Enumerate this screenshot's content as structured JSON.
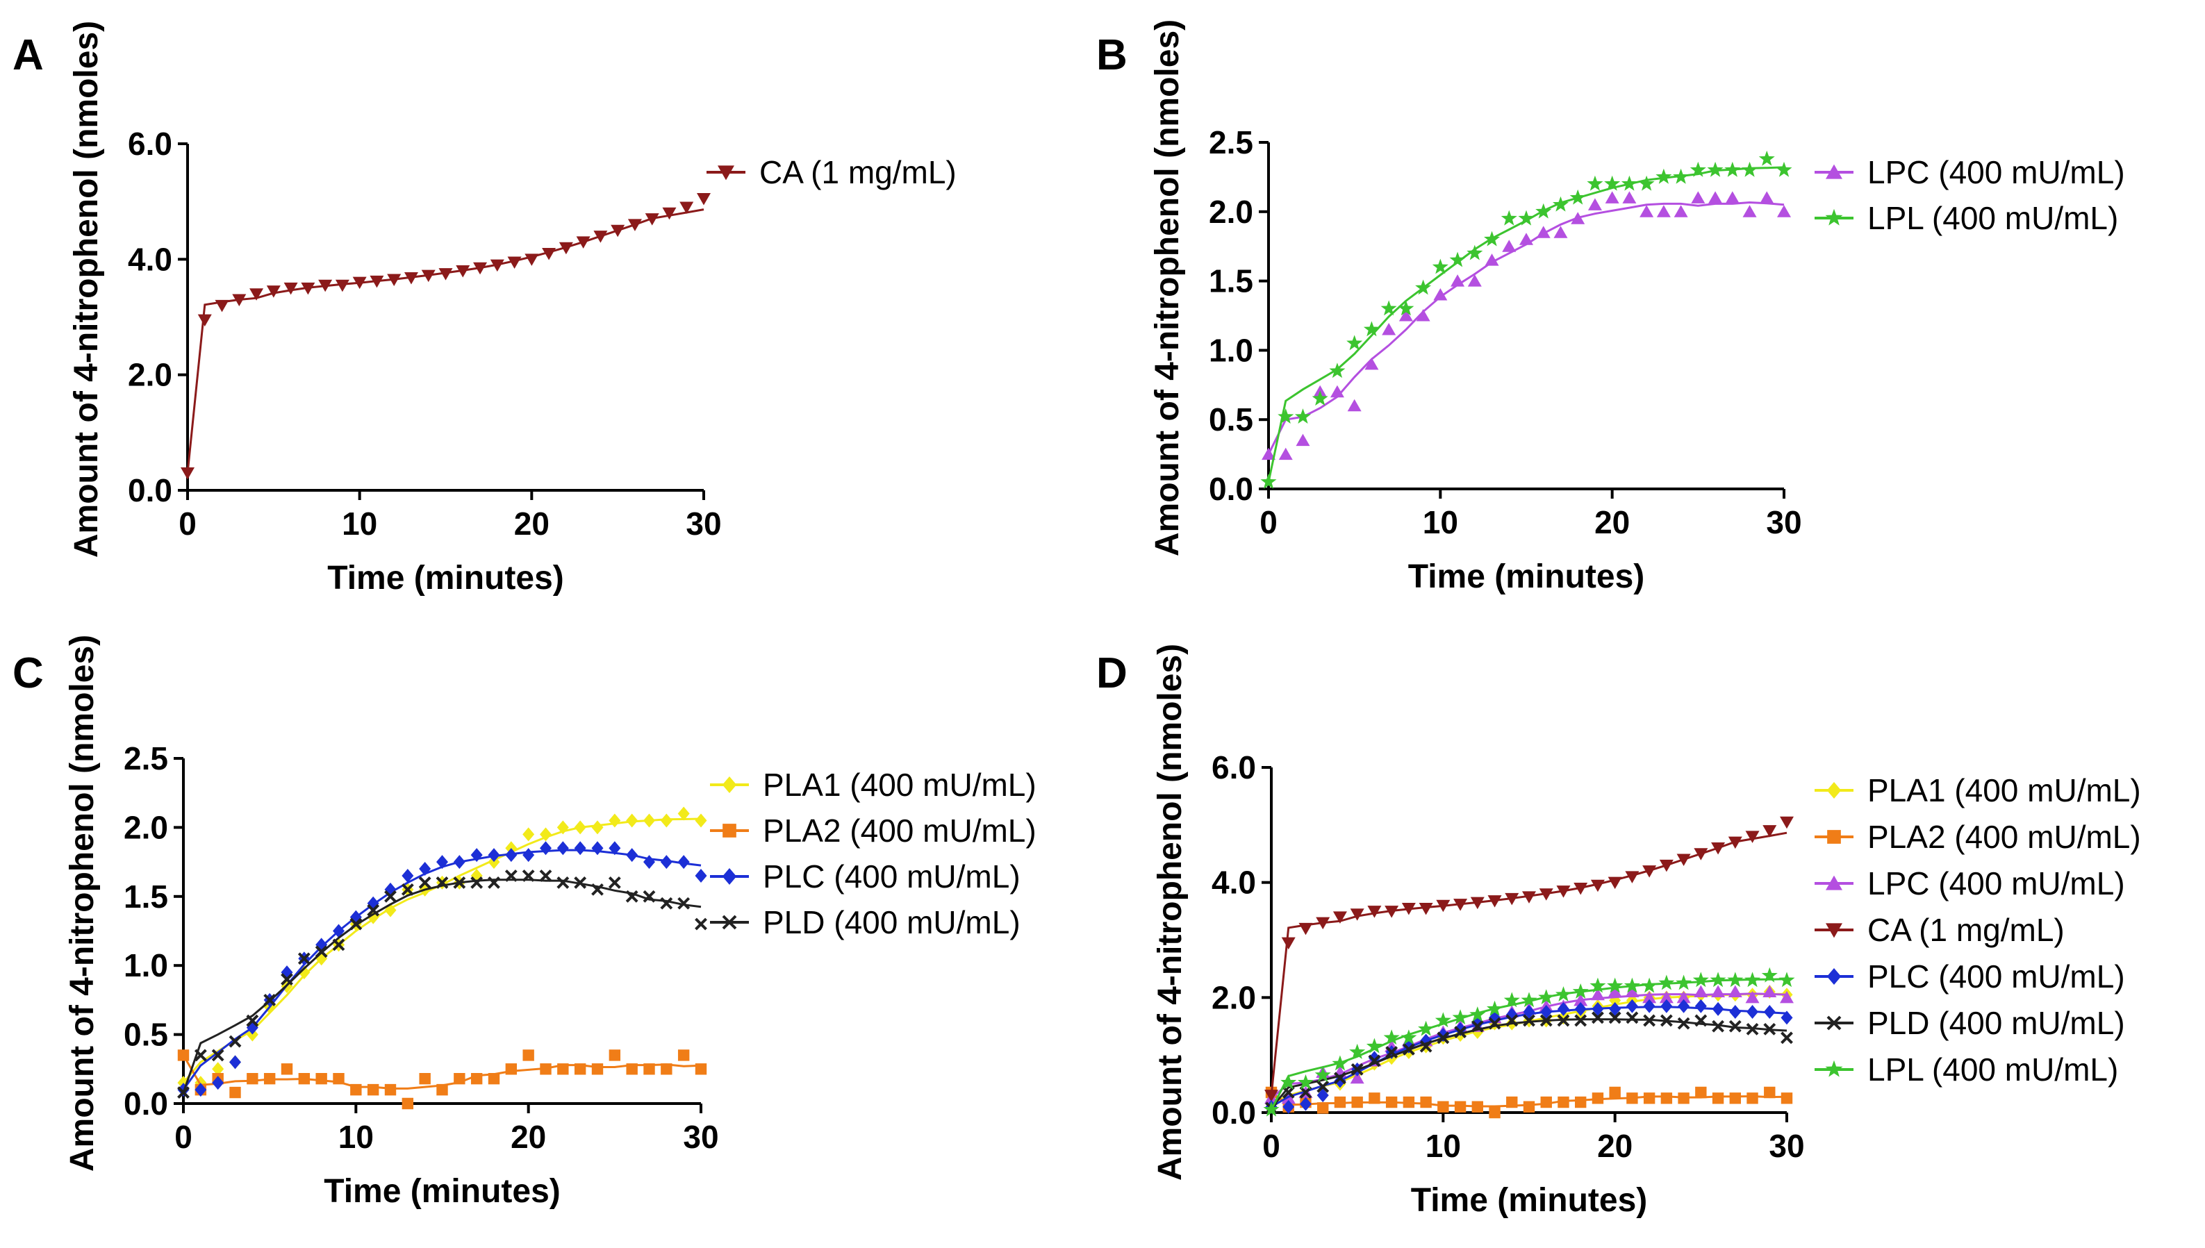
{
  "figure": {
    "panels": [
      "A",
      "B",
      "C",
      "D"
    ]
  },
  "colors": {
    "CA": "#8b1a1a",
    "LPC": "#b44fe0",
    "LPL": "#3cc42f",
    "PLA1": "#f2ea1a",
    "PLA2": "#f07d17",
    "PLC": "#1c2fd6",
    "PLD": "#222222"
  },
  "markers": {
    "CA": "triangle-down-icon",
    "LPC": "triangle-up-icon",
    "LPL": "star-icon",
    "PLA1": "diamond-icon",
    "PLA2": "square-icon",
    "PLC": "diamond-icon",
    "PLD": "cross-icon"
  },
  "chart_data": [
    {
      "panel": "A",
      "type": "scatter",
      "xlabel": "Time (minutes)",
      "ylabel": "Amount of 4-nitrophenol (nmoles)",
      "xlim": [
        0,
        30
      ],
      "ylim": [
        0,
        6
      ],
      "xticks": [
        0,
        10,
        20,
        30
      ],
      "xtick_labels": [
        "0",
        "10",
        "20",
        "30"
      ],
      "yticks": [
        0,
        2,
        4,
        6
      ],
      "ytick_labels": [
        "0.0",
        "2.0",
        "4.0",
        "6.0"
      ],
      "legend_position": "right",
      "series": [
        {
          "name": "CA (1 mg/mL)",
          "key": "CA",
          "values": [
            0.3,
            2.95,
            3.2,
            3.3,
            3.4,
            3.45,
            3.5,
            3.5,
            3.55,
            3.55,
            3.6,
            3.62,
            3.65,
            3.68,
            3.72,
            3.75,
            3.8,
            3.85,
            3.9,
            3.95,
            4.0,
            4.1,
            4.2,
            4.3,
            4.4,
            4.5,
            4.6,
            4.7,
            4.8,
            4.9,
            5.05
          ]
        }
      ]
    },
    {
      "panel": "B",
      "type": "scatter",
      "xlabel": "Time (minutes)",
      "ylabel": "Amount of 4-nitrophenol (nmoles)",
      "xlim": [
        0,
        30
      ],
      "ylim": [
        0,
        2.5
      ],
      "xticks": [
        0,
        10,
        20,
        30
      ],
      "xtick_labels": [
        "0",
        "10",
        "20",
        "30"
      ],
      "yticks": [
        0,
        0.5,
        1,
        1.5,
        2,
        2.5
      ],
      "ytick_labels": [
        "0.0",
        "0.5",
        "1.0",
        "1.5",
        "2.0",
        "2.5"
      ],
      "legend_position": "right",
      "series": [
        {
          "name": "LPC (400 mU/mL)",
          "key": "LPC",
          "values": [
            0.25,
            0.25,
            0.35,
            0.7,
            0.7,
            0.6,
            0.9,
            1.15,
            1.25,
            1.25,
            1.4,
            1.5,
            1.5,
            1.65,
            1.75,
            1.8,
            1.85,
            1.85,
            1.95,
            2.05,
            2.1,
            2.1,
            2.0,
            2.0,
            2.0,
            2.1,
            2.1,
            2.1,
            2.0,
            2.1,
            2.0
          ]
        },
        {
          "name": "LPL (400 mU/mL)",
          "key": "LPL",
          "values": [
            0.05,
            0.52,
            0.52,
            0.65,
            0.85,
            1.05,
            1.15,
            1.3,
            1.3,
            1.45,
            1.6,
            1.65,
            1.7,
            1.8,
            1.95,
            1.95,
            2.0,
            2.05,
            2.1,
            2.2,
            2.2,
            2.2,
            2.2,
            2.25,
            2.25,
            2.3,
            2.3,
            2.3,
            2.3,
            2.38,
            2.3
          ]
        }
      ]
    },
    {
      "panel": "C",
      "type": "scatter",
      "xlabel": "Time (minutes)",
      "ylabel": "Amount of 4-nitrophenol (nmoles)",
      "xlim": [
        0,
        30
      ],
      "ylim": [
        0,
        2.5
      ],
      "xticks": [
        0,
        10,
        20,
        30
      ],
      "xtick_labels": [
        "0",
        "10",
        "20",
        "30"
      ],
      "yticks": [
        0,
        0.5,
        1,
        1.5,
        2,
        2.5
      ],
      "ytick_labels": [
        "0.0",
        "0.5",
        "1.0",
        "1.5",
        "2.0",
        "2.5"
      ],
      "legend_position": "right",
      "series": [
        {
          "name": "PLA1 (400 mU/mL)",
          "key": "PLA1",
          "values": [
            0.15,
            0.15,
            0.25,
            0.3,
            0.5,
            0.7,
            0.85,
            0.95,
            1.05,
            1.15,
            1.3,
            1.35,
            1.4,
            1.55,
            1.55,
            1.6,
            1.6,
            1.65,
            1.75,
            1.85,
            1.95,
            1.95,
            2.0,
            2.0,
            2.0,
            2.05,
            2.05,
            2.05,
            2.05,
            2.1,
            2.05
          ]
        },
        {
          "name": "PLA2 (400 mU/mL)",
          "key": "PLA2",
          "values": [
            0.35,
            0.1,
            0.18,
            0.08,
            0.18,
            0.18,
            0.25,
            0.18,
            0.18,
            0.18,
            0.1,
            0.1,
            0.1,
            0.0,
            0.18,
            0.1,
            0.18,
            0.18,
            0.18,
            0.25,
            0.35,
            0.25,
            0.25,
            0.25,
            0.25,
            0.35,
            0.25,
            0.25,
            0.25,
            0.35,
            0.25
          ]
        },
        {
          "name": "PLC (400 mU/mL)",
          "key": "PLC",
          "values": [
            0.1,
            0.1,
            0.15,
            0.3,
            0.55,
            0.75,
            0.95,
            1.05,
            1.15,
            1.25,
            1.35,
            1.45,
            1.55,
            1.65,
            1.7,
            1.75,
            1.75,
            1.8,
            1.8,
            1.8,
            1.8,
            1.85,
            1.85,
            1.85,
            1.85,
            1.85,
            1.8,
            1.75,
            1.75,
            1.75,
            1.65
          ]
        },
        {
          "name": "PLD (400 mU/mL)",
          "key": "PLD",
          "values": [
            0.08,
            0.35,
            0.35,
            0.45,
            0.6,
            0.75,
            0.9,
            1.05,
            1.1,
            1.15,
            1.3,
            1.4,
            1.5,
            1.55,
            1.6,
            1.6,
            1.6,
            1.6,
            1.6,
            1.65,
            1.65,
            1.65,
            1.6,
            1.6,
            1.55,
            1.6,
            1.5,
            1.5,
            1.45,
            1.45,
            1.3
          ]
        }
      ]
    },
    {
      "panel": "D",
      "type": "scatter",
      "xlabel": "Time (minutes)",
      "ylabel": "Amount of 4-nitrophenol (nmoles)",
      "xlim": [
        0,
        30
      ],
      "ylim": [
        0,
        6
      ],
      "xticks": [
        0,
        10,
        20,
        30
      ],
      "xtick_labels": [
        "0",
        "10",
        "20",
        "30"
      ],
      "yticks": [
        0,
        2,
        4,
        6
      ],
      "ytick_labels": [
        "0.0",
        "2.0",
        "4.0",
        "6.0"
      ],
      "legend_position": "right",
      "series": [
        {
          "name": "PLA1 (400 mU/mL)",
          "key": "PLA1",
          "values": [
            0.15,
            0.15,
            0.25,
            0.3,
            0.5,
            0.7,
            0.85,
            0.95,
            1.05,
            1.15,
            1.3,
            1.35,
            1.4,
            1.55,
            1.55,
            1.6,
            1.6,
            1.65,
            1.75,
            1.85,
            1.95,
            1.95,
            2.0,
            2.0,
            2.0,
            2.05,
            2.05,
            2.05,
            2.05,
            2.1,
            2.05
          ]
        },
        {
          "name": "PLA2 (400 mU/mL)",
          "key": "PLA2",
          "values": [
            0.35,
            0.1,
            0.18,
            0.08,
            0.18,
            0.18,
            0.25,
            0.18,
            0.18,
            0.18,
            0.1,
            0.1,
            0.1,
            0.0,
            0.18,
            0.1,
            0.18,
            0.18,
            0.18,
            0.25,
            0.35,
            0.25,
            0.25,
            0.25,
            0.25,
            0.35,
            0.25,
            0.25,
            0.25,
            0.35,
            0.25
          ]
        },
        {
          "name": "LPC (400 mU/mL)",
          "key": "LPC",
          "values": [
            0.25,
            0.25,
            0.35,
            0.7,
            0.7,
            0.6,
            0.9,
            1.15,
            1.25,
            1.25,
            1.4,
            1.5,
            1.5,
            1.65,
            1.75,
            1.8,
            1.85,
            1.85,
            1.95,
            2.05,
            2.1,
            2.1,
            2.0,
            2.0,
            2.0,
            2.1,
            2.1,
            2.1,
            2.0,
            2.1,
            2.0
          ]
        },
        {
          "name": "CA (1 mg/mL)",
          "key": "CA",
          "values": [
            0.3,
            2.95,
            3.2,
            3.3,
            3.4,
            3.45,
            3.5,
            3.5,
            3.55,
            3.55,
            3.6,
            3.62,
            3.65,
            3.68,
            3.72,
            3.75,
            3.8,
            3.85,
            3.9,
            3.95,
            4.0,
            4.1,
            4.2,
            4.3,
            4.4,
            4.5,
            4.6,
            4.7,
            4.8,
            4.9,
            5.05
          ]
        },
        {
          "name": "PLC (400 mU/mL)",
          "key": "PLC",
          "values": [
            0.1,
            0.1,
            0.15,
            0.3,
            0.55,
            0.75,
            0.95,
            1.05,
            1.15,
            1.25,
            1.35,
            1.45,
            1.55,
            1.65,
            1.7,
            1.75,
            1.75,
            1.8,
            1.8,
            1.8,
            1.8,
            1.85,
            1.85,
            1.85,
            1.85,
            1.85,
            1.8,
            1.75,
            1.75,
            1.75,
            1.65
          ]
        },
        {
          "name": "PLD (400 mU/mL)",
          "key": "PLD",
          "values": [
            0.08,
            0.35,
            0.35,
            0.45,
            0.6,
            0.75,
            0.9,
            1.05,
            1.1,
            1.15,
            1.3,
            1.4,
            1.5,
            1.55,
            1.6,
            1.6,
            1.6,
            1.6,
            1.6,
            1.65,
            1.65,
            1.65,
            1.6,
            1.6,
            1.55,
            1.6,
            1.5,
            1.5,
            1.45,
            1.45,
            1.3
          ]
        },
        {
          "name": "LPL (400 mU/mL)",
          "key": "LPL",
          "values": [
            0.05,
            0.52,
            0.52,
            0.65,
            0.85,
            1.05,
            1.15,
            1.3,
            1.3,
            1.45,
            1.6,
            1.65,
            1.7,
            1.8,
            1.95,
            1.95,
            2.0,
            2.05,
            2.1,
            2.2,
            2.2,
            2.2,
            2.2,
            2.25,
            2.25,
            2.3,
            2.3,
            2.3,
            2.3,
            2.38,
            2.3
          ]
        }
      ]
    }
  ]
}
